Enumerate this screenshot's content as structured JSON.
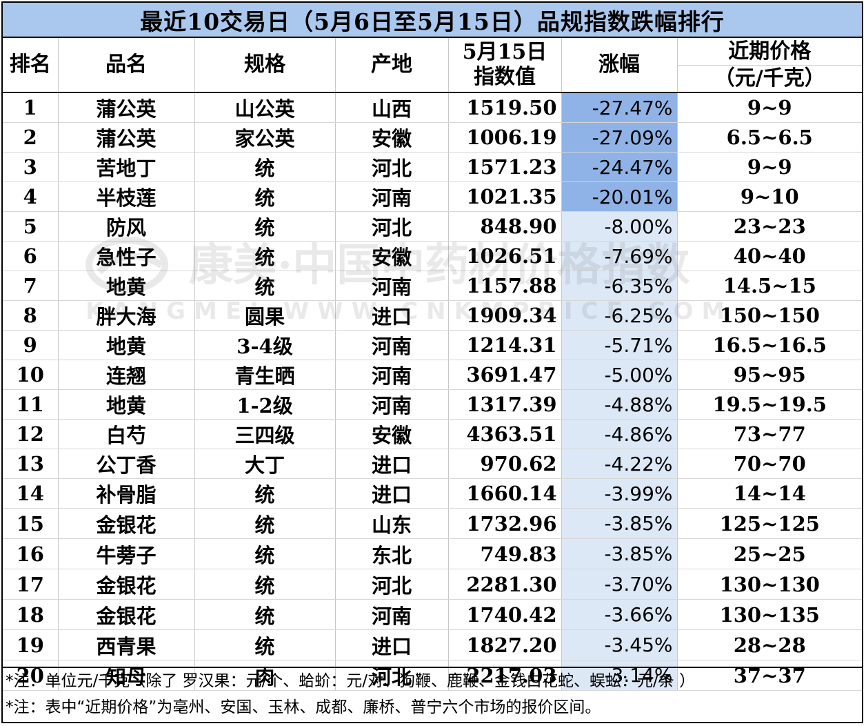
{
  "title": "最近10交易日（5月6日至5月15日）品规指数跌幅排行",
  "headers": {
    "rank": "排名",
    "name": "品名",
    "spec": "规格",
    "origin": "产地",
    "index": "5月15日\n指数值",
    "change": "涨幅",
    "price_line1": "近期价格",
    "price_line2": "（元/千克）"
  },
  "colors": {
    "title_bg": "#aac8ee",
    "change_strong": "#8fb3e6",
    "change_light": "#dde8f7"
  },
  "rows": [
    {
      "rank": "1",
      "name": "蒲公英",
      "spec": "山公英",
      "origin": "山西",
      "index": "1519.50",
      "change": "-27.47%",
      "price": "9~9",
      "bar": 1.0
    },
    {
      "rank": "2",
      "name": "蒲公英",
      "spec": "家公英",
      "origin": "安徽",
      "index": "1006.19",
      "change": "-27.09%",
      "price": "6.5~6.5",
      "bar": 1.0
    },
    {
      "rank": "3",
      "name": "苦地丁",
      "spec": "统",
      "origin": "河北",
      "index": "1571.23",
      "change": "-24.47%",
      "price": "9~9",
      "bar": 1.0
    },
    {
      "rank": "4",
      "name": "半枝莲",
      "spec": "统",
      "origin": "河南",
      "index": "1021.35",
      "change": "-20.01%",
      "price": "9~10",
      "bar": 1.0
    },
    {
      "rank": "5",
      "name": "防风",
      "spec": "统",
      "origin": "河北",
      "index": "848.90",
      "change": "-8.00%",
      "price": "23~23",
      "bar": 0.0
    },
    {
      "rank": "6",
      "name": "急性子",
      "spec": "统",
      "origin": "安徽",
      "index": "1026.51",
      "change": "-7.69%",
      "price": "40~40",
      "bar": 0.0
    },
    {
      "rank": "7",
      "name": "地黄",
      "spec": "统",
      "origin": "河南",
      "index": "1157.88",
      "change": "-6.35%",
      "price": "14.5~15",
      "bar": 0.0
    },
    {
      "rank": "8",
      "name": "胖大海",
      "spec": "圆果",
      "origin": "进口",
      "index": "1909.34",
      "change": "-6.25%",
      "price": "150~150",
      "bar": 0.0
    },
    {
      "rank": "9",
      "name": "地黄",
      "spec": "3-4级",
      "origin": "河南",
      "index": "1214.31",
      "change": "-5.71%",
      "price": "16.5~16.5",
      "bar": 0.0
    },
    {
      "rank": "10",
      "name": "连翘",
      "spec": "青生晒",
      "origin": "河南",
      "index": "3691.47",
      "change": "-5.00%",
      "price": "95~95",
      "bar": 0.0
    },
    {
      "rank": "11",
      "name": "地黄",
      "spec": "1-2级",
      "origin": "河南",
      "index": "1317.39",
      "change": "-4.88%",
      "price": "19.5~19.5",
      "bar": 0.0
    },
    {
      "rank": "12",
      "name": "白芍",
      "spec": "三四级",
      "origin": "安徽",
      "index": "4363.51",
      "change": "-4.86%",
      "price": "73~77",
      "bar": 0.0
    },
    {
      "rank": "13",
      "name": "公丁香",
      "spec": "大丁",
      "origin": "进口",
      "index": "970.62",
      "change": "-4.22%",
      "price": "70~70",
      "bar": 0.0
    },
    {
      "rank": "14",
      "name": "补骨脂",
      "spec": "统",
      "origin": "进口",
      "index": "1660.14",
      "change": "-3.99%",
      "price": "14~14",
      "bar": 0.0
    },
    {
      "rank": "15",
      "name": "金银花",
      "spec": "统",
      "origin": "山东",
      "index": "1732.96",
      "change": "-3.85%",
      "price": "125~125",
      "bar": 0.0
    },
    {
      "rank": "16",
      "name": "牛蒡子",
      "spec": "统",
      "origin": "东北",
      "index": "749.83",
      "change": "-3.85%",
      "price": "25~25",
      "bar": 0.0
    },
    {
      "rank": "17",
      "name": "金银花",
      "spec": "统",
      "origin": "河北",
      "index": "2281.30",
      "change": "-3.70%",
      "price": "130~130",
      "bar": 0.0
    },
    {
      "rank": "18",
      "name": "金银花",
      "spec": "统",
      "origin": "河南",
      "index": "1740.42",
      "change": "-3.66%",
      "price": "130~135",
      "bar": 0.0
    },
    {
      "rank": "19",
      "name": "西青果",
      "spec": "统",
      "origin": "进口",
      "index": "1827.20",
      "change": "-3.45%",
      "price": "28~28",
      "bar": 0.0
    },
    {
      "rank": "20",
      "name": "知母",
      "spec": "肉",
      "origin": "河北",
      "index": "2217.03",
      "change": "-3.14%",
      "price": "37~37",
      "bar": 0.0
    }
  ],
  "notes": [
    "*注：单位元/千克（除了 罗汉果：元/个、蛤蚧：元/对、狗鞭、鹿鞭、金钱白花蛇、蜈蚣：元/条 ）",
    "*注：表中“近期价格”为亳州、安国、玉林、成都、廉桥、普宁六个市场的报价区间。"
  ],
  "watermark": {
    "line1": "康美·中国中药材价格指数",
    "line2": "KANGMEI WWW.CNKMPRICE.COM"
  }
}
